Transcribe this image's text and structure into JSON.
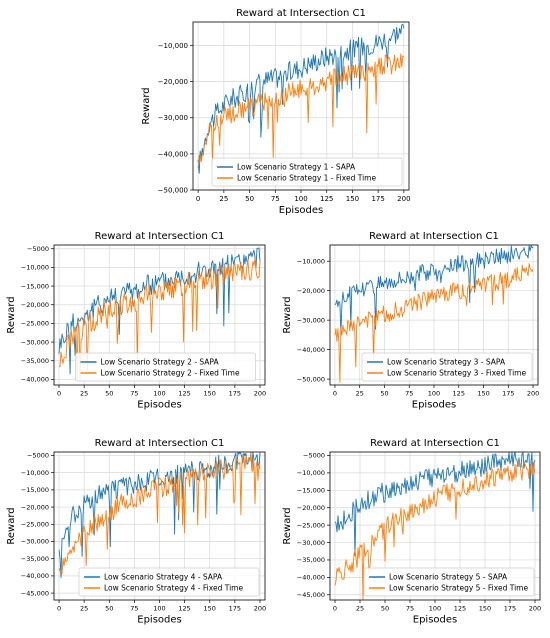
{
  "colors": {
    "sapa": "#1f77b4",
    "fixed": "#ff7f0e",
    "grid": "#d9d9d9"
  },
  "chart_data": [
    {
      "type": "line",
      "title": "Reward at Intersection C1",
      "xlabel": "Episodes",
      "ylabel": "Reward",
      "xlim": [
        -5,
        205
      ],
      "ylim": [
        -50000,
        -3500
      ],
      "xticks": [
        0,
        25,
        50,
        75,
        100,
        125,
        150,
        175,
        200
      ],
      "yticks": [
        -50000,
        -40000,
        -30000,
        -20000,
        -10000
      ],
      "ytick_labels": [
        "−50,000",
        "−40,000",
        "−30,000",
        "−20,000",
        "−10,000"
      ],
      "grid": true,
      "legend_position": "lower-center",
      "series": [
        {
          "name": "Low Scenario Strategy 1 - SAPA",
          "color": "#1f77b4",
          "x": [
            0,
            10,
            20,
            30,
            40,
            50,
            60,
            75,
            100,
            125,
            150,
            175,
            200
          ],
          "values": [
            -44000,
            -32000,
            -28000,
            -25000,
            -24000,
            -22000,
            -20000,
            -19000,
            -16000,
            -13000,
            -11000,
            -9000,
            -5500
          ]
        },
        {
          "name": "Low Scenario Strategy 1 - Fixed Time",
          "color": "#ff7f0e",
          "x": [
            0,
            10,
            20,
            30,
            40,
            50,
            60,
            75,
            100,
            125,
            150,
            175,
            200
          ],
          "values": [
            -42000,
            -34000,
            -31000,
            -29000,
            -28000,
            -27000,
            -26000,
            -25000,
            -22000,
            -20000,
            -18000,
            -16000,
            -14000
          ]
        }
      ]
    },
    {
      "type": "line",
      "title": "Reward at Intersection C1",
      "xlabel": "Episodes",
      "ylabel": "Reward",
      "xlim": [
        -5,
        205
      ],
      "ylim": [
        -41500,
        -4000
      ],
      "xticks": [
        0,
        25,
        50,
        75,
        100,
        125,
        150,
        175,
        200
      ],
      "yticks": [
        -40000,
        -35000,
        -30000,
        -25000,
        -20000,
        -15000,
        -10000,
        -5000
      ],
      "ytick_labels": [
        "−40,000",
        "−35,000",
        "−30,000",
        "−25,000",
        "−20,000",
        "−15,000",
        "−10,000",
        "−5000"
      ],
      "grid": true,
      "legend_position": "lower-center",
      "series": [
        {
          "name": "Low Scenario Strategy 2 - SAPA",
          "color": "#1f77b4",
          "x": [
            0,
            10,
            20,
            30,
            40,
            50,
            60,
            75,
            100,
            125,
            150,
            175,
            200
          ],
          "values": [
            -31000,
            -26000,
            -24000,
            -22000,
            -20000,
            -18000,
            -17000,
            -16000,
            -14000,
            -12000,
            -10500,
            -9000,
            -7000
          ]
        },
        {
          "name": "Low Scenario Strategy 2 - Fixed Time",
          "color": "#ff7f0e",
          "x": [
            0,
            10,
            20,
            30,
            40,
            50,
            60,
            75,
            100,
            125,
            150,
            175,
            200
          ],
          "values": [
            -36000,
            -30000,
            -27000,
            -25000,
            -23000,
            -21000,
            -20000,
            -19000,
            -16500,
            -14500,
            -13000,
            -11500,
            -10000
          ]
        }
      ]
    },
    {
      "type": "line",
      "title": "Reward at Intersection C1",
      "xlabel": "Episodes",
      "ylabel": "Reward",
      "xlim": [
        -5,
        205
      ],
      "ylim": [
        -52000,
        -4500
      ],
      "xticks": [
        0,
        25,
        50,
        75,
        100,
        125,
        150,
        175,
        200
      ],
      "yticks": [
        -50000,
        -40000,
        -30000,
        -20000,
        -10000
      ],
      "ytick_labels": [
        "−50,000",
        "−40,000",
        "−30,000",
        "−20,000",
        "−10,000"
      ],
      "grid": true,
      "legend_position": "lower-right",
      "series": [
        {
          "name": "Low Scenario Strategy 3 - SAPA",
          "color": "#1f77b4",
          "x": [
            0,
            10,
            20,
            30,
            40,
            50,
            60,
            75,
            100,
            125,
            150,
            175,
            200
          ],
          "values": [
            -24000,
            -22000,
            -20000,
            -19000,
            -18000,
            -17000,
            -16000,
            -15000,
            -13000,
            -11000,
            -9500,
            -8000,
            -6500
          ]
        },
        {
          "name": "Low Scenario Strategy 3 - Fixed Time",
          "color": "#ff7f0e",
          "x": [
            0,
            10,
            20,
            30,
            40,
            50,
            60,
            75,
            100,
            125,
            150,
            175,
            200
          ],
          "values": [
            -36000,
            -33000,
            -31000,
            -30000,
            -29000,
            -28000,
            -27000,
            -25000,
            -22000,
            -20000,
            -18000,
            -16000,
            -13000
          ]
        }
      ]
    },
    {
      "type": "line",
      "title": "Reward at Intersection C1",
      "xlabel": "Episodes",
      "ylabel": "Reward",
      "xlim": [
        -5,
        205
      ],
      "ylim": [
        -47000,
        -4000
      ],
      "xticks": [
        0,
        25,
        50,
        75,
        100,
        125,
        150,
        175,
        200
      ],
      "yticks": [
        -45000,
        -40000,
        -35000,
        -30000,
        -25000,
        -20000,
        -15000,
        -10000,
        -5000
      ],
      "ytick_labels": [
        "−45,000",
        "−40,000",
        "−35,000",
        "−30,000",
        "−25,000",
        "−20,000",
        "−15,000",
        "−10,000",
        "−5000"
      ],
      "grid": true,
      "legend_position": "lower-right",
      "series": [
        {
          "name": "Low Scenario Strategy 4 - SAPA",
          "color": "#1f77b4",
          "x": [
            0,
            10,
            20,
            30,
            40,
            50,
            60,
            75,
            100,
            125,
            150,
            175,
            200
          ],
          "values": [
            -33000,
            -24000,
            -20000,
            -18000,
            -16500,
            -15500,
            -14500,
            -13500,
            -11500,
            -10000,
            -8500,
            -7000,
            -5500
          ]
        },
        {
          "name": "Low Scenario Strategy 4 - Fixed Time",
          "color": "#ff7f0e",
          "x": [
            0,
            10,
            20,
            30,
            40,
            50,
            60,
            75,
            100,
            125,
            150,
            175,
            200
          ],
          "values": [
            -40000,
            -34000,
            -29000,
            -26000,
            -23500,
            -21500,
            -19500,
            -17500,
            -14500,
            -12000,
            -10000,
            -8000,
            -6500
          ]
        }
      ]
    },
    {
      "type": "line",
      "title": "Reward at Intersection C1",
      "xlabel": "Episodes",
      "ylabel": "Reward",
      "xlim": [
        -5,
        205
      ],
      "ylim": [
        -46500,
        -4000
      ],
      "xticks": [
        0,
        25,
        50,
        75,
        100,
        125,
        150,
        175,
        200
      ],
      "yticks": [
        -45000,
        -40000,
        -35000,
        -30000,
        -25000,
        -20000,
        -15000,
        -10000,
        -5000
      ],
      "ytick_labels": [
        "−45,000",
        "−40,000",
        "−35,000",
        "−30,000",
        "−25,000",
        "−20,000",
        "−15,000",
        "−10,000",
        "−5000"
      ],
      "grid": true,
      "legend_position": "lower-right",
      "series": [
        {
          "name": "Low Scenario Strategy 5 - SAPA",
          "color": "#1f77b4",
          "x": [
            0,
            10,
            20,
            30,
            40,
            50,
            60,
            75,
            100,
            125,
            150,
            175,
            200
          ],
          "values": [
            -26000,
            -23000,
            -20000,
            -18000,
            -16500,
            -15500,
            -14500,
            -13000,
            -11000,
            -9500,
            -8000,
            -6500,
            -5000
          ]
        },
        {
          "name": "Low Scenario Strategy 5 - Fixed Time",
          "color": "#ff7f0e",
          "x": [
            0,
            10,
            20,
            30,
            40,
            50,
            60,
            75,
            100,
            125,
            150,
            175,
            200
          ],
          "values": [
            -40000,
            -38000,
            -35000,
            -32000,
            -29000,
            -26000,
            -24000,
            -21000,
            -17000,
            -14000,
            -12000,
            -10000,
            -8500
          ]
        }
      ]
    }
  ]
}
